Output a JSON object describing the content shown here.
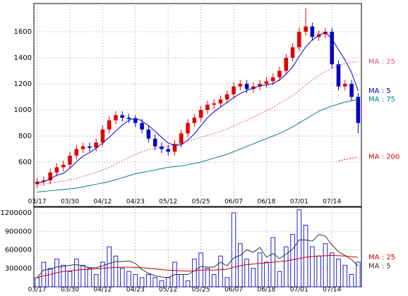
{
  "chart_data": [
    {
      "type": "candlestick",
      "categories": [
        "03/17",
        null,
        null,
        null,
        null,
        "03/30",
        null,
        null,
        null,
        null,
        "04/12",
        null,
        null,
        null,
        null,
        "04/23",
        null,
        null,
        null,
        null,
        "05/12",
        null,
        null,
        null,
        null,
        "05/25",
        null,
        null,
        null,
        null,
        "06/07",
        null,
        null,
        null,
        null,
        "06/18",
        null,
        null,
        null,
        null,
        "07/01",
        null,
        null,
        null,
        null,
        "07/14",
        null,
        null,
        null,
        null
      ],
      "open": [
        430,
        450,
        460,
        520,
        560,
        580,
        650,
        700,
        720,
        710,
        750,
        850,
        920,
        960,
        940,
        930,
        900,
        850,
        780,
        720,
        700,
        680,
        740,
        820,
        900,
        940,
        1000,
        1040,
        1050,
        1080,
        1120,
        1180,
        1200,
        1160,
        1180,
        1200,
        1220,
        1250,
        1300,
        1400,
        1480,
        1600,
        1640,
        1560,
        1580,
        1600,
        1350,
        1180,
        1200,
        1100
      ],
      "high": [
        480,
        490,
        550,
        590,
        610,
        680,
        730,
        750,
        750,
        780,
        880,
        950,
        990,
        990,
        970,
        960,
        930,
        880,
        810,
        750,
        730,
        770,
        850,
        930,
        970,
        1030,
        1070,
        1080,
        1110,
        1150,
        1210,
        1230,
        1230,
        1210,
        1230,
        1250,
        1280,
        1330,
        1430,
        1510,
        1630,
        1780,
        1670,
        1610,
        1630,
        1630,
        1380,
        1230,
        1230,
        1130
      ],
      "low": [
        400,
        420,
        430,
        490,
        530,
        550,
        620,
        670,
        680,
        680,
        720,
        820,
        890,
        910,
        900,
        870,
        820,
        750,
        690,
        670,
        650,
        650,
        710,
        790,
        870,
        910,
        970,
        1010,
        1020,
        1050,
        1090,
        1150,
        1130,
        1130,
        1150,
        1170,
        1190,
        1220,
        1270,
        1370,
        1450,
        1570,
        1530,
        1530,
        1550,
        1320,
        1150,
        1150,
        1070,
        820
      ],
      "close": [
        450,
        460,
        520,
        560,
        580,
        650,
        700,
        720,
        710,
        750,
        850,
        920,
        960,
        940,
        930,
        900,
        850,
        780,
        720,
        700,
        680,
        740,
        820,
        900,
        940,
        1000,
        1040,
        1050,
        1080,
        1120,
        1180,
        1200,
        1160,
        1180,
        1200,
        1220,
        1250,
        1300,
        1400,
        1480,
        1600,
        1640,
        1560,
        1580,
        1600,
        1350,
        1180,
        1200,
        1100,
        900
      ],
      "up_color": "#e00000",
      "down_color": "#0000c0",
      "series": [
        {
          "name": "MA : 5",
          "color": "#0000c0",
          "dash": false,
          "values": [
            440,
            450,
            470,
            500,
            514,
            554,
            602,
            646,
            672,
            706,
            746,
            790,
            838,
            884,
            920,
            938,
            916,
            880,
            836,
            790,
            746,
            728,
            732,
            768,
            816,
            880,
            940,
            986,
            1022,
            1058,
            1094,
            1126,
            1148,
            1168,
            1184,
            1192,
            1202,
            1230,
            1274,
            1330,
            1410,
            1484,
            1536,
            1572,
            1596,
            1546,
            1462,
            1382,
            1286,
            1146
          ]
        },
        {
          "name": "MA : 25",
          "color": "#e05080",
          "dash": true,
          "values": [
            430,
            435,
            440,
            448,
            455,
            465,
            475,
            490,
            505,
            520,
            540,
            560,
            585,
            610,
            635,
            660,
            680,
            695,
            705,
            715,
            720,
            730,
            745,
            760,
            775,
            790,
            805,
            820,
            835,
            855,
            875,
            900,
            920,
            945,
            970,
            995,
            1020,
            1050,
            1080,
            1110,
            1150,
            1190,
            1230,
            1265,
            1295,
            1320,
            1340,
            1355,
            1365,
            1370
          ]
        },
        {
          "name": "MA : 75",
          "color": "#008080",
          "dash": false,
          "values": [
            370,
            375,
            380,
            385,
            390,
            395,
            400,
            410,
            420,
            430,
            440,
            450,
            465,
            480,
            495,
            510,
            520,
            530,
            540,
            550,
            560,
            565,
            570,
            580,
            590,
            600,
            615,
            630,
            645,
            660,
            680,
            700,
            720,
            740,
            760,
            780,
            800,
            820,
            845,
            870,
            900,
            930,
            960,
            990,
            1010,
            1030,
            1045,
            1060,
            1070,
            1080
          ]
        },
        {
          "name": "MA : 200",
          "color": "#d00000",
          "dash": true,
          "values": [
            null,
            null,
            null,
            null,
            null,
            null,
            null,
            null,
            null,
            null,
            null,
            null,
            null,
            null,
            null,
            null,
            null,
            null,
            null,
            null,
            null,
            null,
            null,
            null,
            null,
            null,
            null,
            null,
            null,
            null,
            null,
            null,
            null,
            null,
            null,
            null,
            null,
            null,
            null,
            null,
            null,
            null,
            null,
            null,
            null,
            null,
            610,
            620,
            630,
            640
          ]
        }
      ],
      "ylim": [
        254,
        1816
      ],
      "yticks": [
        600,
        800,
        1000,
        1200,
        1400,
        1600
      ],
      "grid": true
    },
    {
      "type": "bar",
      "categories": [
        "03/17",
        null,
        null,
        null,
        null,
        "03/30",
        null,
        null,
        null,
        null,
        "04/12",
        null,
        null,
        null,
        null,
        "04/23",
        null,
        null,
        null,
        null,
        "05/12",
        null,
        null,
        null,
        null,
        "05/25",
        null,
        null,
        null,
        null,
        "06/07",
        null,
        null,
        null,
        null,
        "06/18",
        null,
        null,
        null,
        null,
        "07/01",
        null,
        null,
        null,
        null,
        "07/14",
        null,
        null,
        null,
        null
      ],
      "values": [
        150000,
        400000,
        300000,
        450000,
        350000,
        250000,
        450000,
        350000,
        300000,
        200000,
        400000,
        650000,
        500000,
        300000,
        250000,
        200000,
        150000,
        200000,
        150000,
        100000,
        150000,
        400000,
        200000,
        100000,
        450000,
        550000,
        300000,
        200000,
        500000,
        150000,
        1200000,
        700000,
        450000,
        300000,
        550000,
        400000,
        800000,
        250000,
        650000,
        850000,
        1250000,
        1000000,
        650000,
        500000,
        700000,
        550000,
        450000,
        350000,
        200000,
        400000
      ],
      "color": "#2020d0",
      "series": [
        {
          "name": "MA : 5",
          "color": "#333333",
          "dash": false,
          "values": [
            150000,
            275000,
            283000,
            325000,
            330000,
            350000,
            360000,
            340000,
            310000,
            310000,
            340000,
            380000,
            410000,
            410000,
            420000,
            380000,
            280000,
            220000,
            180000,
            160000,
            150000,
            200000,
            200000,
            200000,
            260000,
            330000,
            320000,
            320000,
            400000,
            340000,
            470000,
            510000,
            600000,
            560000,
            640000,
            480000,
            540000,
            460000,
            530000,
            610000,
            760000,
            760000,
            740000,
            850000,
            820000,
            680000,
            570000,
            510000,
            440000,
            340000
          ]
        },
        {
          "name": "MA : 25",
          "color": "#d00000",
          "dash": false,
          "values": [
            150000,
            180000,
            200000,
            230000,
            250000,
            260000,
            270000,
            280000,
            285000,
            290000,
            300000,
            310000,
            315000,
            320000,
            320000,
            315000,
            310000,
            300000,
            290000,
            280000,
            270000,
            265000,
            260000,
            255000,
            260000,
            270000,
            275000,
            270000,
            280000,
            285000,
            320000,
            340000,
            360000,
            370000,
            380000,
            390000,
            400000,
            410000,
            420000,
            440000,
            460000,
            480000,
            490000,
            500000,
            505000,
            510000,
            505000,
            500000,
            490000,
            480000
          ]
        }
      ],
      "ylim": [
        0,
        1303000
      ],
      "yticks": [
        300000,
        600000,
        900000,
        1200000
      ],
      "grid": true
    }
  ]
}
